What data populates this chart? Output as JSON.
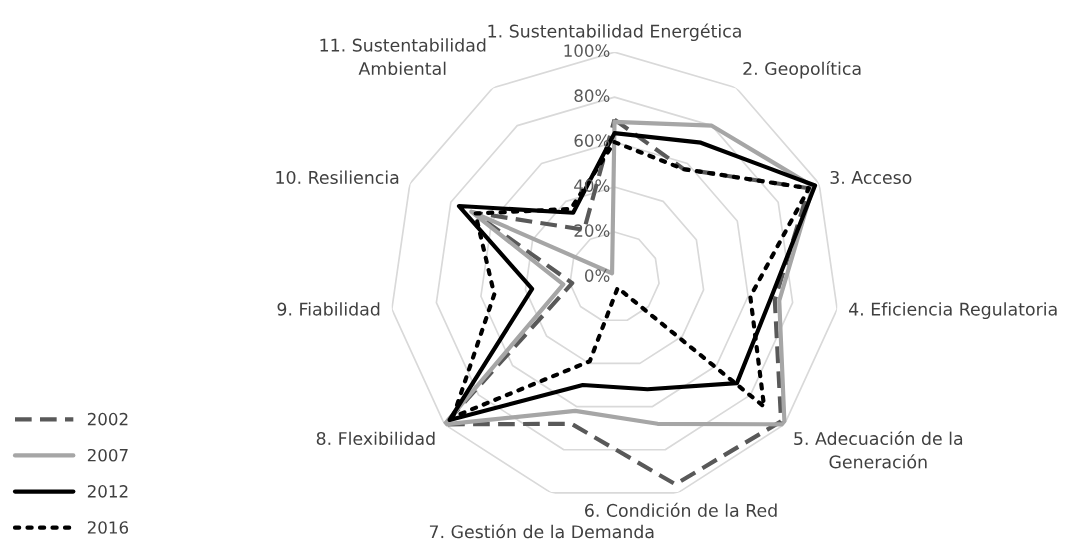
{
  "chart_data": {
    "type": "radar",
    "categories": [
      "1. Sustentabilidad Energética",
      "2. Geopolítica",
      "3. Acceso",
      "4. Eficiencia Regulatoria",
      "5. Adecuación de la\nGeneración",
      "6. Condición de la Red",
      "7. Gestión de la Demanda",
      "8. Flexibilidad",
      "9. Fiabilidad",
      "10. Resiliencia",
      "11. Sustentabilidad\nAmbiental"
    ],
    "series": [
      {
        "name": "2002",
        "color": "#595959",
        "line_style": "dashed",
        "values": [
          70,
          57,
          95,
          72,
          98,
          96,
          68,
          100,
          19,
          69,
          25
        ]
      },
      {
        "name": "2007",
        "color": "#a6a6a6",
        "line_style": "solid",
        "values": [
          69,
          80,
          97,
          74,
          100,
          68,
          62,
          100,
          23,
          70,
          2
        ]
      },
      {
        "name": "2012",
        "color": "#000000",
        "line_style": "solid",
        "values": [
          64,
          71,
          98,
          70,
          72,
          52,
          50,
          97,
          37,
          76,
          34
        ]
      },
      {
        "name": "2016",
        "color": "#000000",
        "line_style": "dotted",
        "values": [
          60,
          57,
          95,
          61,
          88,
          5,
          39,
          95,
          54,
          68,
          36
        ]
      }
    ],
    "ylim": [
      0,
      100
    ],
    "yticks": [
      {
        "value": 0,
        "label": "0%"
      },
      {
        "value": 20,
        "label": "20%"
      },
      {
        "value": 40,
        "label": "40%"
      },
      {
        "value": 60,
        "label": "60%"
      },
      {
        "value": 80,
        "label": "80%"
      },
      {
        "value": 100,
        "label": "100%"
      }
    ],
    "grid": true,
    "legend": "bottom left"
  }
}
